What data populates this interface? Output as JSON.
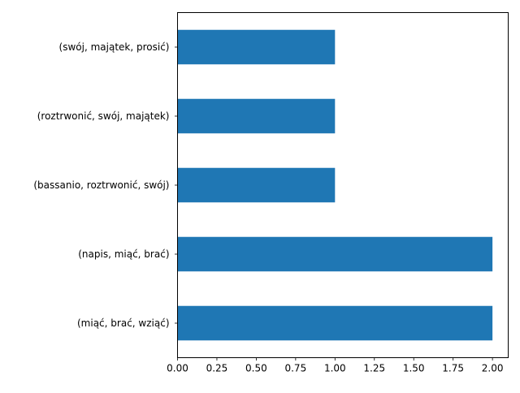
{
  "chart_data": {
    "type": "bar",
    "orientation": "horizontal",
    "categories": [
      "(swój, majątek, prosić)",
      "(roztrwonić, swój, majątek)",
      "(bassanio, roztrwonić, swój)",
      "(napis, miąć, brać)",
      "(miąć, brać, wziąć)"
    ],
    "values": [
      1,
      1,
      1,
      2,
      2
    ],
    "xlim": [
      0,
      2.1
    ],
    "xticks": [
      "0.00",
      "0.25",
      "0.50",
      "0.75",
      "1.00",
      "1.25",
      "1.50",
      "1.75",
      "2.00"
    ],
    "title": "",
    "xlabel": "",
    "ylabel": "",
    "bar_color": "#1f77b4",
    "grid": false,
    "legend": "none"
  }
}
